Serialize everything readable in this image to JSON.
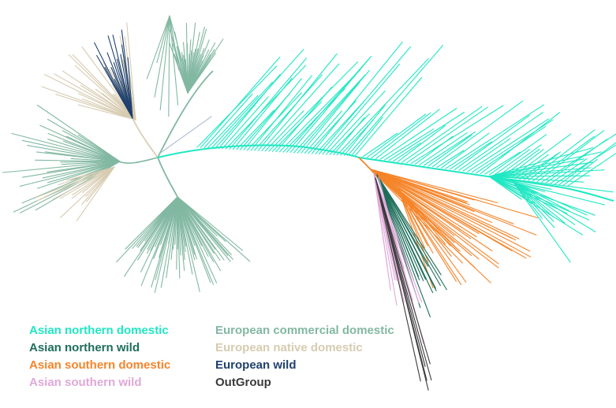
{
  "legend": {
    "left": [
      {
        "label": "Asian northern domestic",
        "color": "#1fe8c3"
      },
      {
        "label": "Asian northern wild",
        "color": "#1e6e5a"
      },
      {
        "label": "Asian southern domestic",
        "color": "#f5852a"
      },
      {
        "label": "Asian southern wild",
        "color": "#e0a8d8"
      }
    ],
    "right": [
      {
        "label": "European commercial domestic",
        "color": "#82b8a2"
      },
      {
        "label": "European native domestic",
        "color": "#d7cbb0"
      },
      {
        "label": "European wild",
        "color": "#20416e"
      },
      {
        "label": "OutGroup",
        "color": "#3a3a3a"
      }
    ]
  }
}
